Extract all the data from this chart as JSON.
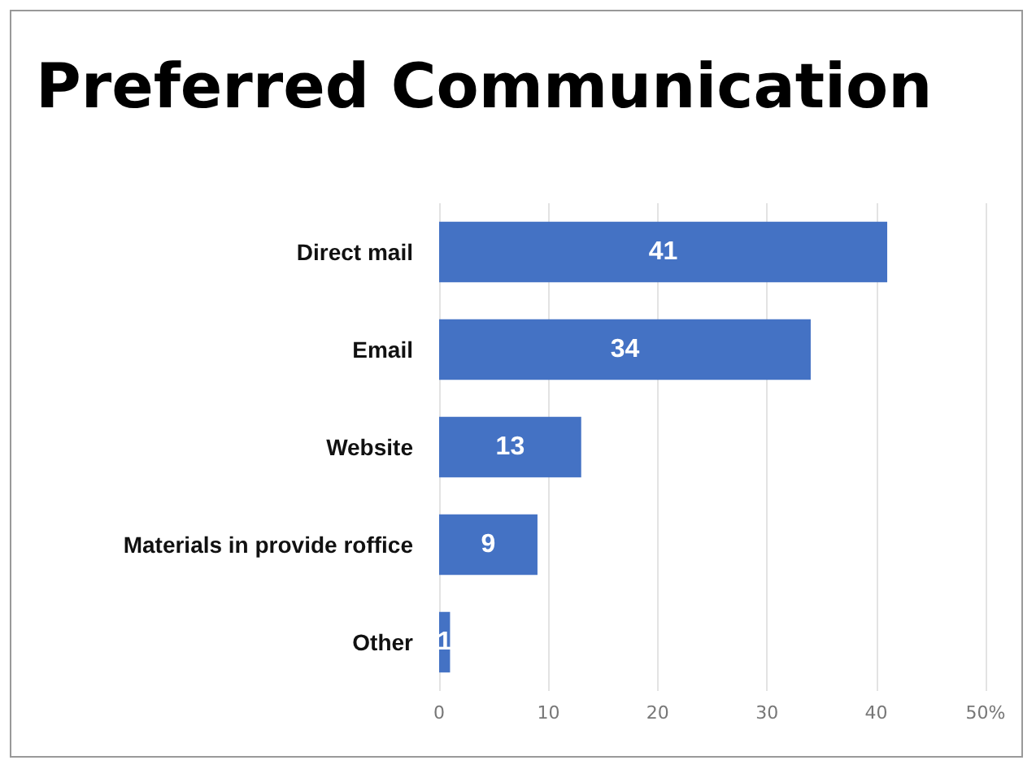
{
  "chart_data": {
    "type": "bar",
    "orientation": "horizontal",
    "title": "Preferred Communication",
    "categories": [
      "Direct mail",
      "Email",
      "Website",
      "Materials in provide roffice",
      "Other"
    ],
    "values": [
      41,
      34,
      13,
      9,
      1
    ],
    "color": "#4472c4",
    "xlim": [
      0,
      50
    ],
    "xticks": [
      0,
      10,
      20,
      30,
      40,
      {
        "value": 50,
        "label": "50%"
      }
    ],
    "grid": "x",
    "data_labels": true
  }
}
